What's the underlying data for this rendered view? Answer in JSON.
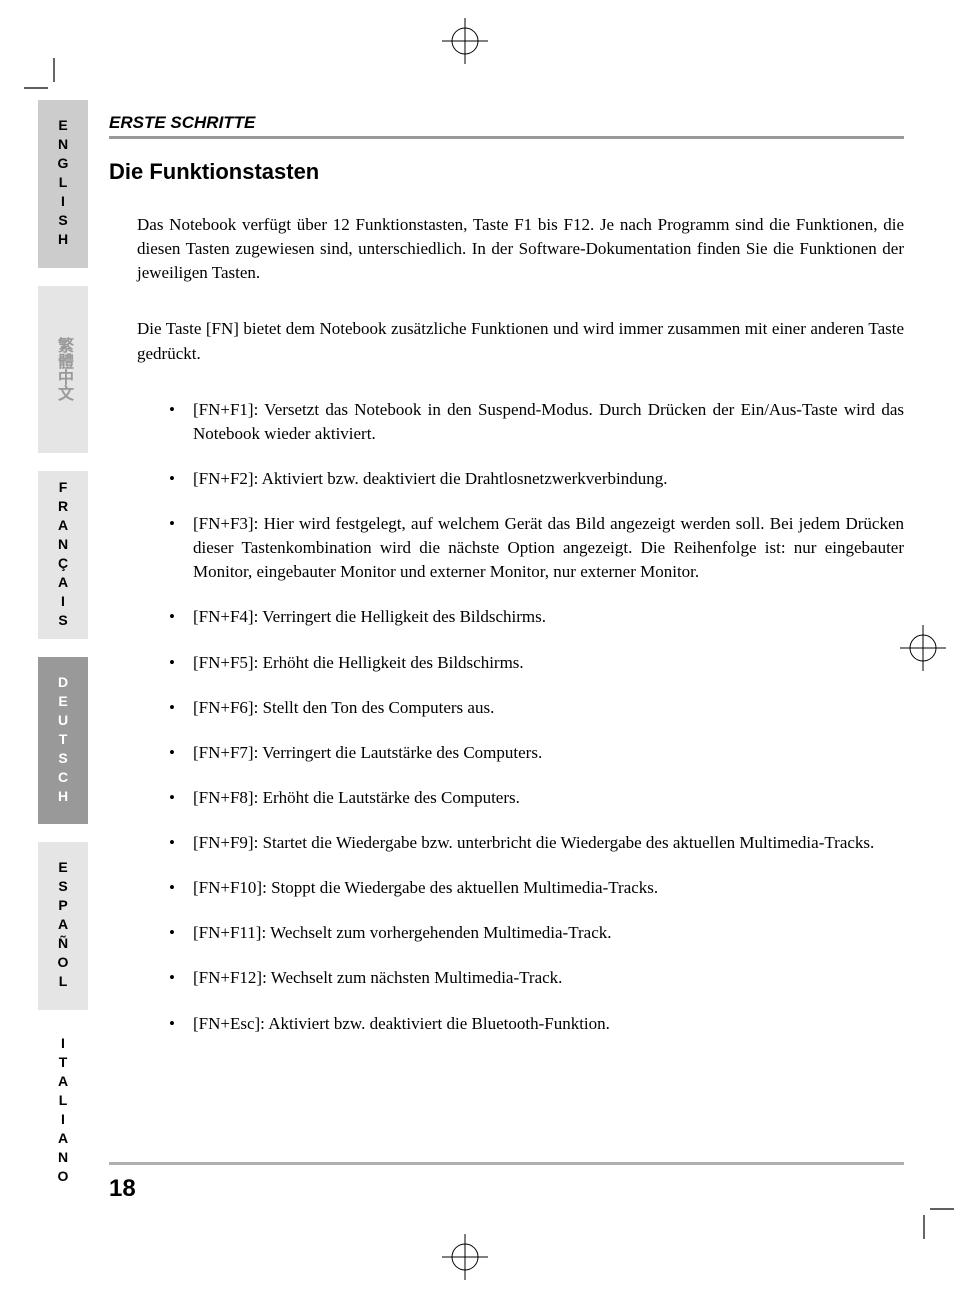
{
  "langs": {
    "english": "ENGLISH",
    "chinese": "繁體中文",
    "francais": "FRANÇAIS",
    "deutsch": "DEUTSCH",
    "espanol": "ESPAÑOL",
    "italiano": "ITALIANO"
  },
  "section_label": "ERSTE SCHRITTE",
  "heading": "Die Funktionstasten",
  "para1": "Das Notebook verfügt über 12 Funktionstasten, Taste F1 bis F12. Je nach Programm sind die Funktionen, die diesen Tasten zugewiesen sind, unterschiedlich. In der Software-Dokumentation finden Sie die Funktionen der jeweiligen Tasten.",
  "para2": "Die Taste [FN] bietet dem Notebook zusätzliche Funktionen und wird immer zusammen mit einer anderen Taste gedrückt.",
  "items": [
    "[FN+F1]: Versetzt das Notebook in den Suspend-Modus. Durch Drücken der Ein/Aus-Taste wird das Notebook wieder aktiviert.",
    "[FN+F2]: Aktiviert bzw. deaktiviert die Drahtlosnetzwerkverbindung.",
    "[FN+F3]: Hier wird festgelegt, auf welchem Gerät das Bild angezeigt werden soll. Bei jedem Drücken dieser Tastenkombination wird die nächste Option angezeigt. Die Reihenfolge ist: nur eingebauter Monitor, eingebauter Monitor und externer Monitor, nur externer Monitor.",
    "[FN+F4]: Verringert die Helligkeit des Bildschirms.",
    "[FN+F5]: Erhöht die Helligkeit des Bildschirms.",
    "[FN+F6]: Stellt den Ton des Computers aus.",
    "[FN+F7]: Verringert die Lautstärke des Computers.",
    "[FN+F8]: Erhöht die Lautstärke des Computers.",
    "[FN+F9]: Startet die Wiedergabe bzw. unterbricht die Wiedergabe des aktuellen Multimedia-Tracks.",
    "[FN+F10]: Stoppt die Wiedergabe des aktuellen Multimedia-Tracks.",
    "[FN+F11]: Wechselt zum vorhergehenden Multimedia-Track.",
    "[FN+F12]: Wechselt zum nächsten Multimedia-Track.",
    "[FN+Esc]: Aktiviert bzw. deaktiviert die Bluetooth-Funktion."
  ],
  "page_number": "18",
  "colors": {
    "tab_active_bg": "#999999",
    "tab_light_bg": "#e5e5e5",
    "tab_med_bg": "#cccccc",
    "rule_gray": "#999999",
    "footer_gray": "#b0b0b0"
  },
  "typography": {
    "body_font": "Times New Roman",
    "heading_font": "Arial",
    "body_size_pt": 12,
    "heading_size_pt": 16,
    "section_label_size_pt": 12
  }
}
